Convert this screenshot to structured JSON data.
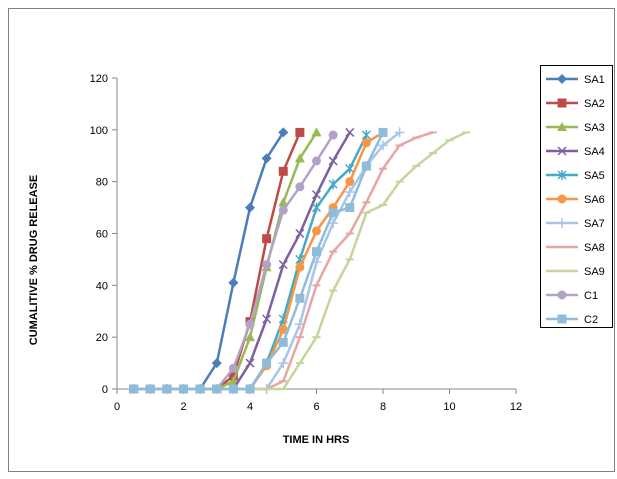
{
  "chart_data": {
    "type": "line",
    "title": "",
    "xlabel": "TIME IN HRS",
    "ylabel": "CUMALITIVE % DRUG RELEASE",
    "xlim": [
      0,
      12
    ],
    "ylim": [
      0,
      120
    ],
    "xticks": [
      0,
      2,
      4,
      6,
      8,
      10,
      12
    ],
    "yticks": [
      0,
      20,
      40,
      60,
      80,
      100,
      120
    ],
    "grid": false,
    "legend_position": "right",
    "series": [
      {
        "name": "SA1",
        "color": "#4a7ebb",
        "marker": "diamond",
        "x": [
          0.5,
          1,
          1.5,
          2,
          2.5,
          3,
          3.5,
          4,
          4.5,
          5
        ],
        "y": [
          0,
          0,
          0,
          0,
          0,
          10,
          41,
          70,
          89,
          99
        ]
      },
      {
        "name": "SA2",
        "color": "#be4b48",
        "marker": "square",
        "x": [
          0.5,
          1,
          1.5,
          2,
          2.5,
          3,
          3.5,
          4,
          4.5,
          5,
          5.5
        ],
        "y": [
          0,
          0,
          0,
          0,
          0,
          0,
          5,
          26,
          58,
          84,
          99
        ]
      },
      {
        "name": "SA3",
        "color": "#98b954",
        "marker": "triangle",
        "x": [
          0.5,
          1,
          1.5,
          2,
          2.5,
          3,
          3.5,
          4,
          4.5,
          5,
          5.5,
          6
        ],
        "y": [
          0,
          0,
          0,
          0,
          0,
          0,
          3,
          20,
          47,
          72,
          89,
          99
        ]
      },
      {
        "name": "SA4",
        "color": "#7d60a0",
        "marker": "x",
        "x": [
          0.5,
          1,
          1.5,
          2,
          2.5,
          3,
          3.5,
          4,
          4.5,
          5,
          5.5,
          6,
          6.5,
          7
        ],
        "y": [
          0,
          0,
          0,
          0,
          0,
          0,
          0,
          10,
          27,
          48,
          60,
          75,
          88,
          99
        ]
      },
      {
        "name": "SA5",
        "color": "#46aac5",
        "marker": "star",
        "x": [
          0.5,
          1,
          1.5,
          2,
          2.5,
          3,
          3.5,
          4,
          4.5,
          5,
          5.5,
          6,
          6.5,
          7,
          7.5
        ],
        "y": [
          0,
          0,
          0,
          0,
          0,
          0,
          0,
          0,
          10,
          27,
          50,
          70,
          79,
          85,
          98
        ]
      },
      {
        "name": "SA6",
        "color": "#f79646",
        "marker": "circle",
        "x": [
          0.5,
          1,
          1.5,
          2,
          2.5,
          3,
          3.5,
          4,
          4.5,
          5,
          5.5,
          6,
          6.5,
          7,
          7.5,
          8
        ],
        "y": [
          0,
          0,
          0,
          0,
          0,
          0,
          0,
          0,
          9,
          23,
          47,
          61,
          70,
          80,
          95,
          99
        ]
      },
      {
        "name": "SA7",
        "color": "#a9c5ea",
        "marker": "plus",
        "x": [
          0.5,
          1,
          1.5,
          2,
          2.5,
          3,
          3.5,
          4,
          4.5,
          5,
          5.5,
          6,
          6.5,
          7,
          7.5,
          8,
          8.5
        ],
        "y": [
          0,
          0,
          0,
          0,
          0,
          0,
          0,
          0,
          0,
          10,
          25,
          49,
          64,
          76,
          86,
          94,
          99
        ]
      },
      {
        "name": "SA8",
        "color": "#e6a6a4",
        "marker": "dash",
        "x": [
          0.5,
          1,
          1.5,
          2,
          2.5,
          3,
          3.5,
          4,
          4.5,
          5,
          5.5,
          6,
          6.5,
          7,
          7.5,
          8,
          8.5,
          9,
          9.5
        ],
        "y": [
          0,
          0,
          0,
          0,
          0,
          0,
          0,
          0,
          0,
          3,
          20,
          40,
          53,
          60,
          72,
          85,
          94,
          97,
          99
        ]
      },
      {
        "name": "SA9",
        "color": "#c3d69b",
        "marker": "dash",
        "x": [
          0.5,
          1,
          1.5,
          2,
          2.5,
          3,
          3.5,
          4,
          4.5,
          5,
          5.5,
          6,
          6.5,
          7,
          7.5,
          8,
          8.5,
          9,
          9.5,
          10,
          10.5
        ],
        "y": [
          0,
          0,
          0,
          0,
          0,
          0,
          0,
          0,
          0,
          0,
          10,
          20,
          38,
          50,
          68,
          71,
          80,
          86,
          91,
          96,
          99
        ]
      },
      {
        "name": "C1",
        "color": "#b3a2c7",
        "marker": "circle",
        "x": [
          0.5,
          1,
          1.5,
          2,
          2.5,
          3,
          3.5,
          4,
          4.5,
          5,
          5.5,
          6,
          6.5
        ],
        "y": [
          0,
          0,
          0,
          0,
          0,
          0,
          8,
          25,
          48,
          69,
          78,
          88,
          98
        ]
      },
      {
        "name": "C2",
        "color": "#8fbcd9",
        "marker": "square",
        "x": [
          0.5,
          1,
          1.5,
          2,
          2.5,
          3,
          3.5,
          4,
          4.5,
          5,
          5.5,
          6,
          6.5,
          7,
          7.5,
          8
        ],
        "y": [
          0,
          0,
          0,
          0,
          0,
          0,
          0,
          0,
          10,
          18,
          35,
          53,
          68,
          70,
          86,
          99
        ]
      }
    ]
  }
}
